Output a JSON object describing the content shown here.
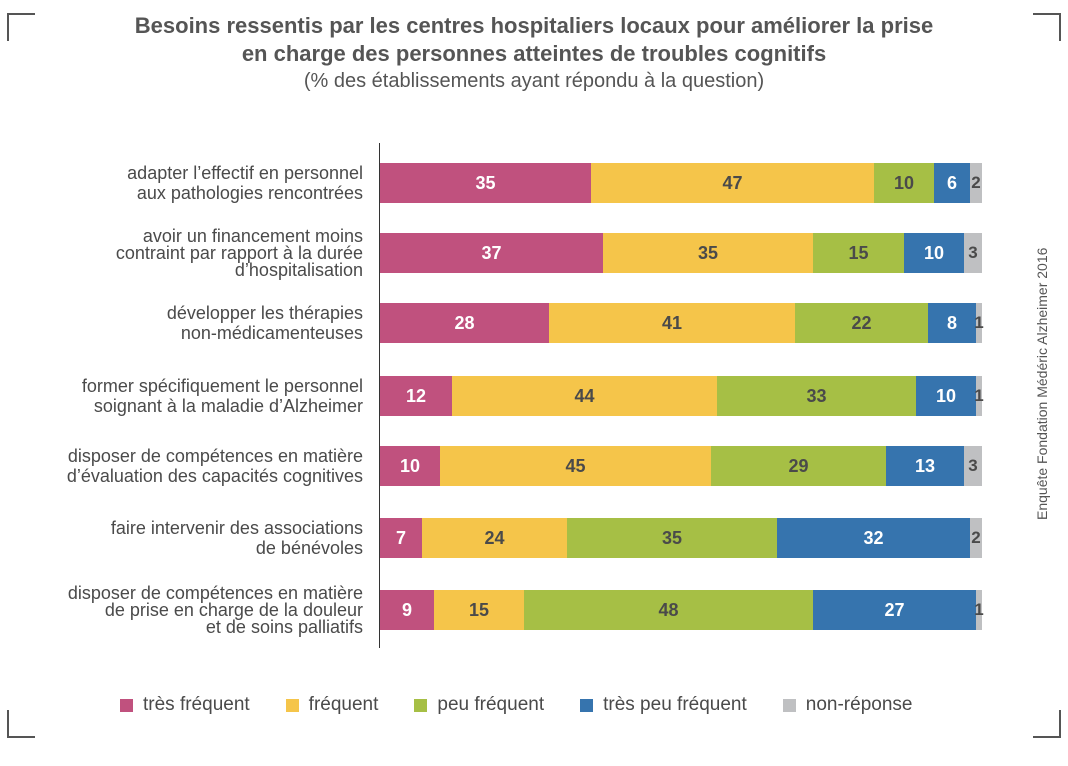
{
  "title_line1": "Besoins ressentis par les centres hospitaliers locaux pour améliorer la prise",
  "title_line2": "en charge des personnes atteintes de troubles cognitifs",
  "subtitle": "(% des établissements ayant répondu à la question)",
  "side_note": "Enquête Fondation Médéric Alzheimer 2016",
  "colors": {
    "tres_frequent": "#c0517e",
    "frequent": "#f5c54a",
    "peu_frequent": "#a6bf45",
    "tres_peu_frequent": "#3674ae",
    "non_reponse": "#bfc0c2"
  },
  "chart_data": {
    "type": "bar",
    "orientation": "horizontal",
    "stacked": true,
    "categories": [
      [
        "adapter l’effectif en personnel",
        "aux pathologies rencontrées"
      ],
      [
        "avoir un financement moins",
        "contraint par rapport à la durée",
        "d’hospitalisation"
      ],
      [
        "développer les thérapies",
        "non-médicamenteuses"
      ],
      [
        "former spécifiquement le personnel",
        "soignant à la maladie d’Alzheimer"
      ],
      [
        "disposer de compétences en matière",
        "d’évaluation des capacités cognitives"
      ],
      [
        "faire intervenir des associations",
        "de bénévoles"
      ],
      [
        "disposer de compétences en matière",
        "de prise en charge de la douleur",
        "et de soins palliatifs"
      ]
    ],
    "series": [
      {
        "name": "très fréquent",
        "values": [
          35,
          37,
          28,
          12,
          10,
          7,
          9
        ]
      },
      {
        "name": "fréquent",
        "values": [
          47,
          35,
          41,
          44,
          45,
          24,
          15
        ]
      },
      {
        "name": "peu fréquent",
        "values": [
          10,
          15,
          22,
          33,
          29,
          35,
          48
        ]
      },
      {
        "name": "très peu fréquent",
        "values": [
          6,
          10,
          8,
          10,
          13,
          32,
          27
        ]
      },
      {
        "name": "non-réponse",
        "values": [
          2,
          3,
          1,
          1,
          3,
          2,
          1
        ]
      }
    ],
    "xlim": [
      0,
      100
    ],
    "legend_position": "bottom",
    "grid": false
  }
}
